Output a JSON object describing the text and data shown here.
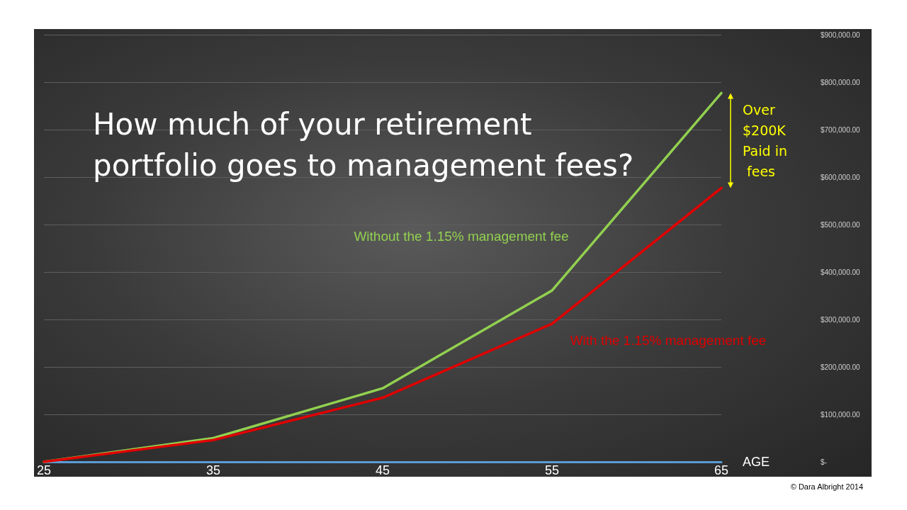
{
  "chart_data": {
    "type": "line",
    "title": "How much of your retirement portfolio goes to management fees?",
    "xlabel": "AGE",
    "categories": [
      "25",
      "35",
      "45",
      "55",
      "65"
    ],
    "series": [
      {
        "name": "Without the 1.15% management fee",
        "color": "#92d050",
        "values": [
          0,
          50000,
          155000,
          361000,
          777000
        ]
      },
      {
        "name": "With the 1.15% management fee",
        "color": "#e00000",
        "values": [
          0,
          46000,
          135000,
          291000,
          577000
        ]
      }
    ],
    "ylim": [
      0,
      900000
    ],
    "yticks": [
      {
        "value": 0,
        "label": "$-"
      },
      {
        "value": 100000,
        "label": "$100,000.00"
      },
      {
        "value": 200000,
        "label": "$200,000.00"
      },
      {
        "value": 300000,
        "label": "$300,000.00"
      },
      {
        "value": 400000,
        "label": "$400,000.00"
      },
      {
        "value": 500000,
        "label": "$500,000.00"
      },
      {
        "value": 600000,
        "label": "$600,000.00"
      },
      {
        "value": 700000,
        "label": "$700,000.00"
      },
      {
        "value": 800000,
        "label": "$800,000.00"
      },
      {
        "value": 900000,
        "label": "$900,000.00"
      }
    ],
    "grid": "y",
    "marker": "none",
    "line_style": "solid",
    "legend": false,
    "annotations": [
      "Over $200K Paid in fees",
      "© Dara Albright 2014"
    ]
  }
}
